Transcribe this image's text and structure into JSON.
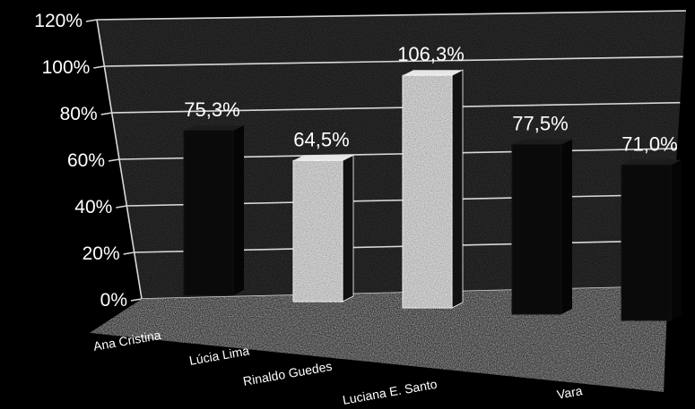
{
  "chart_data": {
    "type": "bar",
    "categories": [
      "Ana Cristina",
      "Lúcia Lima",
      "Rinaldo Guedes",
      "Luciana E. Santo",
      "Vara"
    ],
    "values": [
      75.3,
      64.5,
      106.3,
      77.5,
      71.0
    ],
    "data_labels": [
      "75,3%",
      "64,5%",
      "106,3%",
      "77,5%",
      "71,0%"
    ],
    "ylim": [
      0,
      120
    ],
    "yticks": [
      0,
      20,
      40,
      60,
      80,
      100,
      120
    ],
    "ytick_labels": [
      "0%",
      "20%",
      "40%",
      "60%",
      "80%",
      "100%",
      "120%"
    ],
    "title": "",
    "xlabel": "",
    "ylabel": "",
    "grid": true,
    "bar_styles": [
      "dark",
      "light",
      "light",
      "dark",
      "dark"
    ],
    "colors": {
      "background": "#000000",
      "text": "#ffffff",
      "grid": "#d8d8d8",
      "dark_bar": "#0a0a0a",
      "light_bar": "#d4d4d4",
      "floor": "#cfcfcf"
    }
  }
}
